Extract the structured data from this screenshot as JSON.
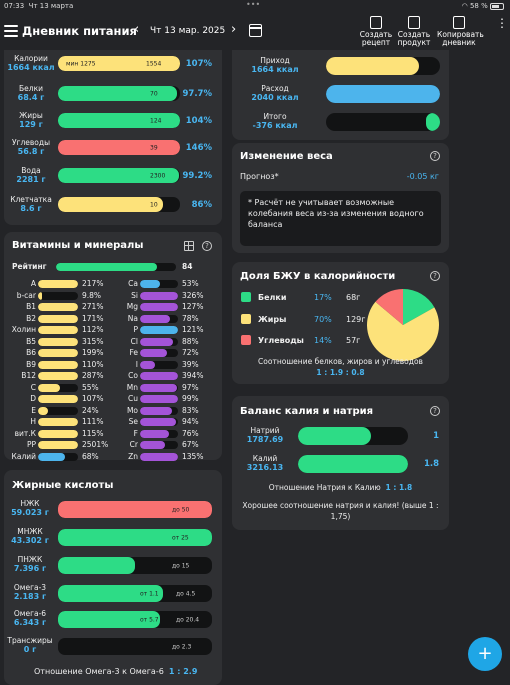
{
  "status": {
    "time": "07:33",
    "date": "Чт 13 марта",
    "dots": "•••",
    "battery": "58 %"
  },
  "header": {
    "title": "Дневник питания",
    "prev": "‹",
    "next": "›",
    "date": "Чт 13 мар. 2025",
    "buttons": [
      {
        "label1": "Создать",
        "label2": "рецепт"
      },
      {
        "label1": "Создать",
        "label2": "продукт"
      },
      {
        "label1": "Копировать",
        "label2": "дневник"
      }
    ],
    "more": "⋮"
  },
  "colors": {
    "yellow": "#fde27a",
    "green": "#2ddc86",
    "red": "#f97171",
    "blue": "#4db4ec",
    "purple": "#a454d8"
  },
  "macros": [
    {
      "name": "Калории",
      "value": "1664 ккал",
      "fill": 1.0,
      "mark1": "мин 1275",
      "mark2": "1554",
      "pct": "107%",
      "color": "#fde27a"
    },
    {
      "name": "Белки",
      "value": "68.4 г",
      "fill": 0.977,
      "mark": "70",
      "pct": "97.7%",
      "color": "#2ddc86"
    },
    {
      "name": "Жиры",
      "value": "129 г",
      "fill": 1.0,
      "mark": "124",
      "pct": "104%",
      "color": "#2ddc86"
    },
    {
      "name": "Углеводы",
      "value": "56.8 г",
      "fill": 1.0,
      "mark": "39",
      "pct": "146%",
      "color": "#f97171"
    },
    {
      "name": "Вода",
      "value": "2281 г",
      "fill": 0.992,
      "mark": "2300",
      "pct": "99.2%",
      "color": "#2ddc86"
    },
    {
      "name": "Клетчатка",
      "value": "8.6 г",
      "fill": 0.86,
      "mark": "10",
      "pct": "86%",
      "color": "#fde27a"
    }
  ],
  "vitamins": {
    "title": "Витамины и минералы",
    "rating_label": "Рейтинг",
    "rating_value": "84",
    "rating_fill": 0.84,
    "left": [
      {
        "n": "A",
        "v": "217%",
        "f": 1.0,
        "c": "#fde27a"
      },
      {
        "n": "b-car",
        "v": "9.8%",
        "f": 0.098,
        "c": "#fde27a"
      },
      {
        "n": "B1",
        "v": "271%",
        "f": 1.0,
        "c": "#fde27a"
      },
      {
        "n": "B2",
        "v": "171%",
        "f": 1.0,
        "c": "#fde27a"
      },
      {
        "n": "Холин",
        "v": "112%",
        "f": 1.0,
        "c": "#fde27a"
      },
      {
        "n": "B5",
        "v": "315%",
        "f": 1.0,
        "c": "#fde27a"
      },
      {
        "n": "B6",
        "v": "199%",
        "f": 1.0,
        "c": "#fde27a"
      },
      {
        "n": "B9",
        "v": "110%",
        "f": 1.0,
        "c": "#fde27a"
      },
      {
        "n": "B12",
        "v": "287%",
        "f": 1.0,
        "c": "#fde27a"
      },
      {
        "n": "C",
        "v": "55%",
        "f": 0.55,
        "c": "#fde27a"
      },
      {
        "n": "D",
        "v": "107%",
        "f": 1.0,
        "c": "#fde27a"
      },
      {
        "n": "E",
        "v": "24%",
        "f": 0.24,
        "c": "#fde27a"
      },
      {
        "n": "H",
        "v": "111%",
        "f": 1.0,
        "c": "#fde27a"
      },
      {
        "n": "вит.К",
        "v": "115%",
        "f": 1.0,
        "c": "#fde27a"
      },
      {
        "n": "PP",
        "v": "2501%",
        "f": 1.0,
        "c": "#fde27a"
      },
      {
        "n": "Калий",
        "v": "68%",
        "f": 0.68,
        "c": "#4db4ec"
      }
    ],
    "right": [
      {
        "n": "Ca",
        "v": "53%",
        "f": 0.53,
        "c": "#4db4ec"
      },
      {
        "n": "Si",
        "v": "326%",
        "f": 1.0,
        "c": "#a454d8"
      },
      {
        "n": "Mg",
        "v": "127%",
        "f": 1.0,
        "c": "#a454d8"
      },
      {
        "n": "Na",
        "v": "78%",
        "f": 0.78,
        "c": "#a454d8"
      },
      {
        "n": "P",
        "v": "121%",
        "f": 1.0,
        "c": "#4db4ec"
      },
      {
        "n": "Cl",
        "v": "88%",
        "f": 0.88,
        "c": "#a454d8"
      },
      {
        "n": "Fe",
        "v": "72%",
        "f": 0.72,
        "c": "#a454d8"
      },
      {
        "n": "I",
        "v": "39%",
        "f": 0.39,
        "c": "#a454d8"
      },
      {
        "n": "Co",
        "v": "394%",
        "f": 1.0,
        "c": "#a454d8"
      },
      {
        "n": "Mn",
        "v": "97%",
        "f": 0.97,
        "c": "#a454d8"
      },
      {
        "n": "Cu",
        "v": "99%",
        "f": 0.99,
        "c": "#a454d8"
      },
      {
        "n": "Mo",
        "v": "83%",
        "f": 0.83,
        "c": "#a454d8"
      },
      {
        "n": "Se",
        "v": "94%",
        "f": 0.94,
        "c": "#a454d8"
      },
      {
        "n": "F",
        "v": "76%",
        "f": 0.76,
        "c": "#a454d8"
      },
      {
        "n": "Cr",
        "v": "67%",
        "f": 0.67,
        "c": "#a454d8"
      },
      {
        "n": "Zn",
        "v": "135%",
        "f": 1.0,
        "c": "#a454d8"
      }
    ]
  },
  "fats": {
    "title": "Жирные кислоты",
    "rows": [
      {
        "name": "НЖК",
        "value": "59.023 г",
        "fill": 1.0,
        "marker": "до 50",
        "color": "#f97171"
      },
      {
        "name": "МНЖК",
        "value": "43.302 г",
        "fill": 1.0,
        "marker": "от 25",
        "color": "#2ddc86"
      },
      {
        "name": "ПНЖК",
        "value": "7.396 г",
        "fill": 0.5,
        "marker": "до 15",
        "color": "#2ddc86"
      },
      {
        "name": "Омега-3",
        "value": "2.183 г",
        "fill": 0.68,
        "marker": "от 1.1",
        "marker2": "до 4.5",
        "color": "#2ddc86"
      },
      {
        "name": "Омега-6",
        "value": "6.343 г",
        "fill": 0.66,
        "marker": "от 5.7",
        "marker2": "до 20.4",
        "color": "#2ddc86"
      },
      {
        "name": "Трансжиры",
        "value": "0 г",
        "fill": 0.0,
        "marker": "до 2.3",
        "color": "#2ddc86"
      }
    ],
    "ratio_label": "Отношение Омега-3 к Омега-6",
    "ratio_value": "1 : 2.9"
  },
  "energy": {
    "rows": [
      {
        "name": "Приход",
        "value": "1664 ккал",
        "fill": 0.82,
        "color": "#fde27a"
      },
      {
        "name": "Расход",
        "value": "2040 ккал",
        "fill": 1.0,
        "color": "#4db4ec"
      },
      {
        "name": "Итого",
        "value": "-376 ккал",
        "fill": 0.12,
        "color": "#2ddc86"
      }
    ]
  },
  "weight": {
    "title": "Изменение веса",
    "forecast_label": "Прогноз*",
    "forecast_value": "-0.05 кг",
    "note": "* Расчёт не учитывает возможные колебания веса из-за изменения водного баланса"
  },
  "bju": {
    "title": "Доля БЖУ в калорийности",
    "items": [
      {
        "name": "Белки",
        "pct": "17%",
        "grams": "68г",
        "color": "#2ddc86"
      },
      {
        "name": "Жиры",
        "pct": "70%",
        "grams": "129г",
        "color": "#fde27a"
      },
      {
        "name": "Углеводы",
        "pct": "14%",
        "grams": "57г",
        "color": "#f97171"
      }
    ],
    "ratio_label": "Соотношение белков, жиров и углеводов",
    "ratio_value": "1 : 1.9 : 0.8"
  },
  "chart_data": {
    "type": "pie",
    "categories": [
      "Белки",
      "Жиры",
      "Углеводы"
    ],
    "values": [
      17,
      70,
      14
    ]
  },
  "kna": {
    "title": "Баланс калия и натрия",
    "rows": [
      {
        "name": "Натрий",
        "value": "1787.69",
        "fill": 0.66,
        "num": "1",
        "color": "#2ddc86"
      },
      {
        "name": "Калий",
        "value": "3216.13",
        "fill": 1.0,
        "num": "1.8",
        "color": "#2ddc86"
      }
    ],
    "ratio_label": "Отношение Натрия к Калию",
    "ratio_value": "1 : 1.8",
    "summary": "Хорошее соотношение натрия и калия! (выше 1 : 1,75)"
  },
  "fab": "+"
}
